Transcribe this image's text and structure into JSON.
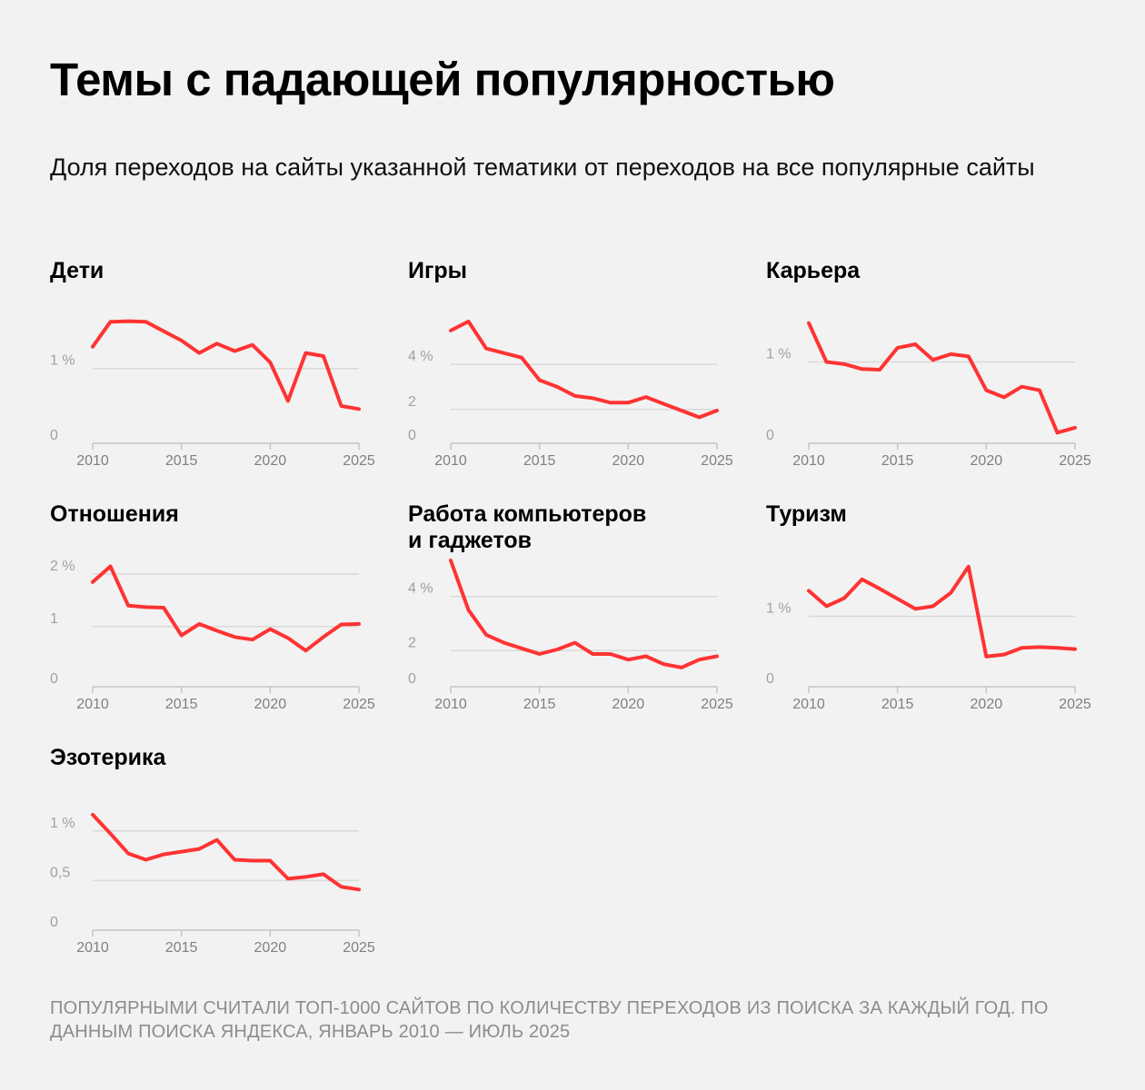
{
  "header": {
    "title": "Темы с падающей популярностью",
    "subtitle": "Доля переходов на сайты указанной тематики от переходов на все популярные сайты"
  },
  "footnote": "ПОПУЛЯРНЫМИ СЧИТАЛИ ТОП-1000 САЙТОВ ПО КОЛИЧЕСТВУ ПЕРЕХОДОВ ИЗ ПОИСКА ЗА КАЖДЫЙ ГОД. ПО ДАННЫМ ПОИСКА ЯНДЕКСА, ЯНВАРЬ 2010 — ИЮЛЬ 2025",
  "colors": {
    "line": "#ff3333",
    "background": "#f2f2f2"
  },
  "chart_data": [
    {
      "type": "line",
      "title": "Дети",
      "x": [
        2010,
        2011,
        2012,
        2013,
        2014,
        2015,
        2016,
        2017,
        2018,
        2019,
        2020,
        2021,
        2022,
        2023,
        2024,
        2025
      ],
      "values": [
        1.55,
        1.95,
        1.96,
        1.95,
        1.8,
        1.65,
        1.45,
        1.6,
        1.48,
        1.58,
        1.3,
        0.68,
        1.45,
        1.4,
        0.6,
        0.55
      ],
      "xticks": [
        2010,
        2015,
        2020,
        2025
      ],
      "xtick_labels": [
        "2010",
        "2015",
        "2020",
        "2025"
      ],
      "yticks": [
        0,
        1.2
      ],
      "ytick_labels": [
        "0",
        "1 %"
      ],
      "ylim": [
        0,
        2.1
      ]
    },
    {
      "type": "line",
      "title": "Игры",
      "x": [
        2010,
        2011,
        2012,
        2013,
        2014,
        2015,
        2016,
        2017,
        2018,
        2019,
        2020,
        2021,
        2022,
        2023,
        2024,
        2025
      ],
      "values": [
        5.0,
        5.4,
        4.2,
        4.0,
        3.8,
        2.8,
        2.5,
        2.1,
        2.0,
        1.8,
        1.8,
        2.05,
        1.75,
        1.45,
        1.15,
        1.45
      ],
      "xticks": [
        2010,
        2015,
        2020,
        2025
      ],
      "xtick_labels": [
        "2010",
        "2015",
        "2020",
        "2025"
      ],
      "yticks": [
        0,
        1.5,
        3.5
      ],
      "ytick_labels": [
        "0",
        "2",
        "4 %"
      ],
      "ylim": [
        0,
        5.8
      ]
    },
    {
      "type": "line",
      "title": "Карьера",
      "x": [
        2010,
        2011,
        2012,
        2013,
        2014,
        2015,
        2016,
        2017,
        2018,
        2019,
        2020,
        2021,
        2022,
        2023,
        2024,
        2025
      ],
      "values": [
        1.7,
        1.15,
        1.12,
        1.05,
        1.04,
        1.35,
        1.4,
        1.18,
        1.26,
        1.23,
        0.75,
        0.65,
        0.8,
        0.75,
        0.15,
        0.22
      ],
      "xticks": [
        2010,
        2015,
        2020,
        2025
      ],
      "xtick_labels": [
        "2010",
        "2015",
        "2020",
        "2025"
      ],
      "yticks": [
        0,
        1.15
      ],
      "ytick_labels": [
        "0",
        "1 %"
      ],
      "ylim": [
        0,
        1.85
      ]
    },
    {
      "type": "line",
      "title": "Отношения",
      "x": [
        2010,
        2011,
        2012,
        2013,
        2014,
        2015,
        2016,
        2017,
        2018,
        2019,
        2020,
        2021,
        2022,
        2023,
        2024,
        2025
      ],
      "values": [
        2.0,
        2.3,
        1.55,
        1.52,
        1.51,
        0.98,
        1.2,
        1.07,
        0.95,
        0.9,
        1.1,
        0.93,
        0.69,
        0.95,
        1.19,
        1.2
      ],
      "xticks": [
        2010,
        2015,
        2020,
        2025
      ],
      "xtick_labels": [
        "2010",
        "2015",
        "2020",
        "2025"
      ],
      "yticks": [
        0,
        1.15,
        2.15
      ],
      "ytick_labels": [
        "0",
        "1",
        "2 %"
      ],
      "ylim": [
        0,
        2.5
      ]
    },
    {
      "type": "line",
      "title": "Работа компьютеров\nи гаджетов",
      "x": [
        2010,
        2011,
        2012,
        2013,
        2014,
        2015,
        2016,
        2017,
        2018,
        2019,
        2020,
        2021,
        2022,
        2023,
        2024,
        2025
      ],
      "values": [
        5.6,
        3.4,
        2.3,
        1.95,
        1.7,
        1.45,
        1.65,
        1.95,
        1.45,
        1.45,
        1.2,
        1.35,
        1.0,
        0.85,
        1.2,
        1.35
      ],
      "xticks": [
        2010,
        2015,
        2020,
        2025
      ],
      "xtick_labels": [
        "2010",
        "2015",
        "2020",
        "2025"
      ],
      "yticks": [
        0,
        1.6,
        4.0
      ],
      "ytick_labels": [
        "0",
        "2",
        "4 %"
      ],
      "ylim": [
        0,
        5.8
      ]
    },
    {
      "type": "line",
      "title": "Туризм",
      "x": [
        2010,
        2011,
        2012,
        2013,
        2014,
        2015,
        2016,
        2017,
        2018,
        2019,
        2020,
        2021,
        2022,
        2023,
        2024,
        2025
      ],
      "values": [
        1.43,
        1.2,
        1.32,
        1.6,
        1.46,
        1.31,
        1.16,
        1.2,
        1.4,
        1.79,
        0.45,
        0.48,
        0.58,
        0.59,
        0.58,
        0.56
      ],
      "xticks": [
        2010,
        2015,
        2020,
        2025
      ],
      "xtick_labels": [
        "2010",
        "2015",
        "2020",
        "2025"
      ],
      "yticks": [
        0,
        1.05
      ],
      "ytick_labels": [
        "0",
        "1 %"
      ],
      "ylim": [
        0,
        1.95
      ]
    },
    {
      "type": "line",
      "title": "Эзотерика",
      "x": [
        2010,
        2011,
        2012,
        2013,
        2014,
        2015,
        2016,
        2017,
        2018,
        2019,
        2020,
        2021,
        2022,
        2023,
        2024,
        2025
      ],
      "values": [
        1.28,
        1.07,
        0.85,
        0.78,
        0.84,
        0.87,
        0.9,
        1.0,
        0.78,
        0.77,
        0.77,
        0.57,
        0.59,
        0.62,
        0.48,
        0.45
      ],
      "xticks": [
        2010,
        2015,
        2020,
        2025
      ],
      "xtick_labels": [
        "2010",
        "2015",
        "2020",
        "2025"
      ],
      "yticks": [
        0,
        0.55,
        1.1
      ],
      "ytick_labels": [
        "0",
        "0,5",
        "1 %"
      ],
      "ylim": [
        0,
        1.45
      ]
    }
  ]
}
